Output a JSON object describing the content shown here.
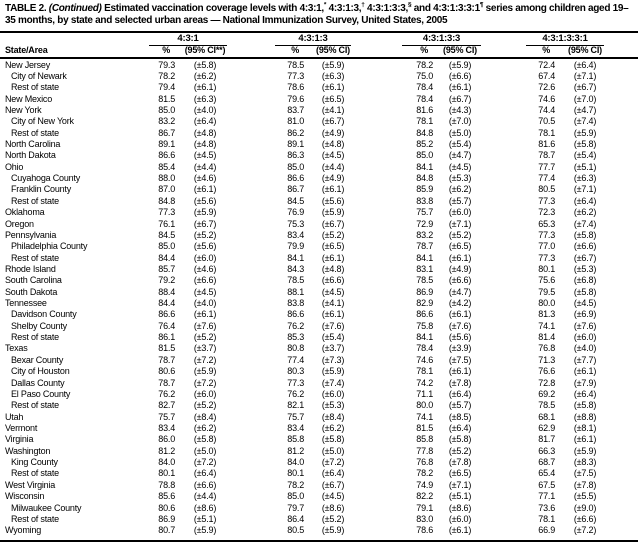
{
  "title": {
    "parts": [
      {
        "text": "TABLE 2. ",
        "style": "bold"
      },
      {
        "text": "(Continued)",
        "style": "bold-italic"
      },
      {
        "text": " Estimated vaccination coverage levels with 4:3:1,",
        "style": "bold"
      },
      {
        "text": "*",
        "style": "sup"
      },
      {
        "text": " 4:3:1:3,",
        "style": "bold"
      },
      {
        "text": "†",
        "style": "sup"
      },
      {
        "text": " 4:3:1:3:3,",
        "style": "bold"
      },
      {
        "text": "§",
        "style": "sup"
      },
      {
        "text": " and 4:3:1:3:3:1",
        "style": "bold"
      },
      {
        "text": "¶",
        "style": "sup"
      },
      {
        "text": " series among children aged 19–35 months, by state and selected urban areas — National Immunization Survey, United States, 2005",
        "style": "bold"
      }
    ]
  },
  "colors": {
    "text": "#000000",
    "background": "#ffffff",
    "rule": "#000000"
  },
  "table": {
    "row_header": "State/Area",
    "groups": [
      {
        "label": "4:3:1",
        "pct_header": "%",
        "ci_header": "(95% CI**)"
      },
      {
        "label": "4:3:1:3",
        "pct_header": "%",
        "ci_header": "(95% CI)"
      },
      {
        "label": "4:3:1:3:3",
        "pct_header": "%",
        "ci_header": "(95% CI)"
      },
      {
        "label": "4:3:1:3:3:1",
        "pct_header": "%",
        "ci_header": "(95% CI)"
      }
    ],
    "rows": [
      {
        "area": "New Jersey",
        "indent": 0,
        "v": [
          "79.3",
          "(±5.8)",
          "78.5",
          "(±5.9)",
          "78.2",
          "(±5.9)",
          "72.4",
          "(±6.4)"
        ]
      },
      {
        "area": "City of Newark",
        "indent": 1,
        "v": [
          "78.2",
          "(±6.2)",
          "77.3",
          "(±6.3)",
          "75.0",
          "(±6.6)",
          "67.4",
          "(±7.1)"
        ]
      },
      {
        "area": "Rest of state",
        "indent": 1,
        "v": [
          "79.4",
          "(±6.1)",
          "78.6",
          "(±6.1)",
          "78.4",
          "(±6.1)",
          "72.6",
          "(±6.7)"
        ]
      },
      {
        "area": "New Mexico",
        "indent": 0,
        "v": [
          "81.5",
          "(±6.3)",
          "79.6",
          "(±6.5)",
          "78.4",
          "(±6.7)",
          "74.6",
          "(±7.0)"
        ]
      },
      {
        "area": "New York",
        "indent": 0,
        "v": [
          "85.0",
          "(±4.0)",
          "83.7",
          "(±4.1)",
          "81.6",
          "(±4.3)",
          "74.4",
          "(±4.7)"
        ]
      },
      {
        "area": "City of New York",
        "indent": 1,
        "v": [
          "83.2",
          "(±6.4)",
          "81.0",
          "(±6.7)",
          "78.1",
          "(±7.0)",
          "70.5",
          "(±7.4)"
        ]
      },
      {
        "area": "Rest of state",
        "indent": 1,
        "v": [
          "86.7",
          "(±4.8)",
          "86.2",
          "(±4.9)",
          "84.8",
          "(±5.0)",
          "78.1",
          "(±5.9)"
        ]
      },
      {
        "area": "North Carolina",
        "indent": 0,
        "v": [
          "89.1",
          "(±4.8)",
          "89.1",
          "(±4.8)",
          "85.2",
          "(±5.4)",
          "81.6",
          "(±5.8)"
        ]
      },
      {
        "area": "North Dakota",
        "indent": 0,
        "v": [
          "86.6",
          "(±4.5)",
          "86.3",
          "(±4.5)",
          "85.0",
          "(±4.7)",
          "78.7",
          "(±5.4)"
        ]
      },
      {
        "area": "Ohio",
        "indent": 0,
        "v": [
          "85.4",
          "(±4.4)",
          "85.0",
          "(±4.4)",
          "84.1",
          "(±4.5)",
          "77.7",
          "(±5.1)"
        ]
      },
      {
        "area": "Cuyahoga County",
        "indent": 1,
        "v": [
          "88.0",
          "(±4.6)",
          "86.6",
          "(±4.9)",
          "84.8",
          "(±5.3)",
          "77.4",
          "(±6.3)"
        ]
      },
      {
        "area": "Franklin County",
        "indent": 1,
        "v": [
          "87.0",
          "(±6.1)",
          "86.7",
          "(±6.1)",
          "85.9",
          "(±6.2)",
          "80.5",
          "(±7.1)"
        ]
      },
      {
        "area": "Rest of state",
        "indent": 1,
        "v": [
          "84.8",
          "(±5.6)",
          "84.5",
          "(±5.6)",
          "83.8",
          "(±5.7)",
          "77.3",
          "(±6.4)"
        ]
      },
      {
        "area": "Oklahoma",
        "indent": 0,
        "v": [
          "77.3",
          "(±5.9)",
          "76.9",
          "(±5.9)",
          "75.7",
          "(±6.0)",
          "72.3",
          "(±6.2)"
        ]
      },
      {
        "area": "Oregon",
        "indent": 0,
        "v": [
          "76.1",
          "(±6.7)",
          "75.3",
          "(±6.7)",
          "72.9",
          "(±7.1)",
          "65.3",
          "(±7.4)"
        ]
      },
      {
        "area": "Pennsylvania",
        "indent": 0,
        "v": [
          "84.5",
          "(±5.2)",
          "83.4",
          "(±5.2)",
          "83.2",
          "(±5.2)",
          "77.3",
          "(±5.8)"
        ]
      },
      {
        "area": "Philadelphia County",
        "indent": 1,
        "v": [
          "85.0",
          "(±5.6)",
          "79.9",
          "(±6.5)",
          "78.7",
          "(±6.5)",
          "77.0",
          "(±6.6)"
        ]
      },
      {
        "area": "Rest of state",
        "indent": 1,
        "v": [
          "84.4",
          "(±6.0)",
          "84.1",
          "(±6.1)",
          "84.1",
          "(±6.1)",
          "77.3",
          "(±6.7)"
        ]
      },
      {
        "area": "Rhode Island",
        "indent": 0,
        "v": [
          "85.7",
          "(±4.6)",
          "84.3",
          "(±4.8)",
          "83.1",
          "(±4.9)",
          "80.1",
          "(±5.3)"
        ]
      },
      {
        "area": "South Carolina",
        "indent": 0,
        "v": [
          "79.2",
          "(±6.6)",
          "78.5",
          "(±6.6)",
          "78.5",
          "(±6.6)",
          "75.6",
          "(±6.8)"
        ]
      },
      {
        "area": "South Dakota",
        "indent": 0,
        "v": [
          "88.4",
          "(±4.5)",
          "88.1",
          "(±4.5)",
          "86.9",
          "(±4.7)",
          "79.5",
          "(±5.8)"
        ]
      },
      {
        "area": "Tennessee",
        "indent": 0,
        "v": [
          "84.4",
          "(±4.0)",
          "83.8",
          "(±4.1)",
          "82.9",
          "(±4.2)",
          "80.0",
          "(±4.5)"
        ]
      },
      {
        "area": "Davidson County",
        "indent": 1,
        "v": [
          "86.6",
          "(±6.1)",
          "86.6",
          "(±6.1)",
          "86.6",
          "(±6.1)",
          "81.3",
          "(±6.9)"
        ]
      },
      {
        "area": "Shelby County",
        "indent": 1,
        "v": [
          "76.4",
          "(±7.6)",
          "76.2",
          "(±7.6)",
          "75.8",
          "(±7.6)",
          "74.1",
          "(±7.6)"
        ]
      },
      {
        "area": "Rest of state",
        "indent": 1,
        "v": [
          "86.1",
          "(±5.2)",
          "85.3",
          "(±5.4)",
          "84.1",
          "(±5.6)",
          "81.4",
          "(±6.0)"
        ]
      },
      {
        "area": "Texas",
        "indent": 0,
        "v": [
          "81.5",
          "(±3.7)",
          "80.8",
          "(±3.7)",
          "78.4",
          "(±3.9)",
          "76.8",
          "(±4.0)"
        ]
      },
      {
        "area": "Bexar County",
        "indent": 1,
        "v": [
          "78.7",
          "(±7.2)",
          "77.4",
          "(±7.3)",
          "74.6",
          "(±7.5)",
          "71.3",
          "(±7.7)"
        ]
      },
      {
        "area": "City of Houston",
        "indent": 1,
        "v": [
          "80.6",
          "(±5.9)",
          "80.3",
          "(±5.9)",
          "78.1",
          "(±6.1)",
          "76.6",
          "(±6.1)"
        ]
      },
      {
        "area": "Dallas County",
        "indent": 1,
        "v": [
          "78.7",
          "(±7.2)",
          "77.3",
          "(±7.4)",
          "74.2",
          "(±7.8)",
          "72.8",
          "(±7.9)"
        ]
      },
      {
        "area": "El Paso County",
        "indent": 1,
        "v": [
          "76.2",
          "(±6.0)",
          "76.2",
          "(±6.0)",
          "71.1",
          "(±6.4)",
          "69.2",
          "(±6.4)"
        ]
      },
      {
        "area": "Rest of state",
        "indent": 1,
        "v": [
          "82.7",
          "(±5.2)",
          "82.1",
          "(±5.3)",
          "80.0",
          "(±5.7)",
          "78.5",
          "(±5.8)"
        ]
      },
      {
        "area": "Utah",
        "indent": 0,
        "v": [
          "75.7",
          "(±8.4)",
          "75.7",
          "(±8.4)",
          "74.1",
          "(±8.5)",
          "68.1",
          "(±8.8)"
        ]
      },
      {
        "area": "Vermont",
        "indent": 0,
        "v": [
          "83.4",
          "(±6.2)",
          "83.4",
          "(±6.2)",
          "81.5",
          "(±6.4)",
          "62.9",
          "(±8.1)"
        ]
      },
      {
        "area": "Virginia",
        "indent": 0,
        "v": [
          "86.0",
          "(±5.8)",
          "85.8",
          "(±5.8)",
          "85.8",
          "(±5.8)",
          "81.7",
          "(±6.1)"
        ]
      },
      {
        "area": "Washington",
        "indent": 0,
        "v": [
          "81.2",
          "(±5.0)",
          "81.2",
          "(±5.0)",
          "77.8",
          "(±5.2)",
          "66.3",
          "(±5.9)"
        ]
      },
      {
        "area": "King County",
        "indent": 1,
        "v": [
          "84.0",
          "(±7.2)",
          "84.0",
          "(±7.2)",
          "76.8",
          "(±7.8)",
          "68.7",
          "(±8.3)"
        ]
      },
      {
        "area": "Rest of state",
        "indent": 1,
        "v": [
          "80.1",
          "(±6.4)",
          "80.1",
          "(±6.4)",
          "78.2",
          "(±6.5)",
          "65.4",
          "(±7.5)"
        ]
      },
      {
        "area": "West Virginia",
        "indent": 0,
        "v": [
          "78.8",
          "(±6.6)",
          "78.2",
          "(±6.7)",
          "74.9",
          "(±7.1)",
          "67.5",
          "(±7.8)"
        ]
      },
      {
        "area": "Wisconsin",
        "indent": 0,
        "v": [
          "85.6",
          "(±4.4)",
          "85.0",
          "(±4.5)",
          "82.2",
          "(±5.1)",
          "77.1",
          "(±5.5)"
        ]
      },
      {
        "area": "Milwaukee County",
        "indent": 1,
        "v": [
          "80.6",
          "(±8.6)",
          "79.7",
          "(±8.6)",
          "79.1",
          "(±8.6)",
          "73.6",
          "(±9.0)"
        ]
      },
      {
        "area": "Rest of state",
        "indent": 1,
        "v": [
          "86.9",
          "(±5.1)",
          "86.4",
          "(±5.2)",
          "83.0",
          "(±6.0)",
          "78.1",
          "(±6.6)"
        ]
      },
      {
        "area": "Wyoming",
        "indent": 0,
        "v": [
          "80.7",
          "(±5.9)",
          "80.5",
          "(±5.9)",
          "78.6",
          "(±6.1)",
          "66.9",
          "(±7.2)"
        ]
      }
    ]
  }
}
